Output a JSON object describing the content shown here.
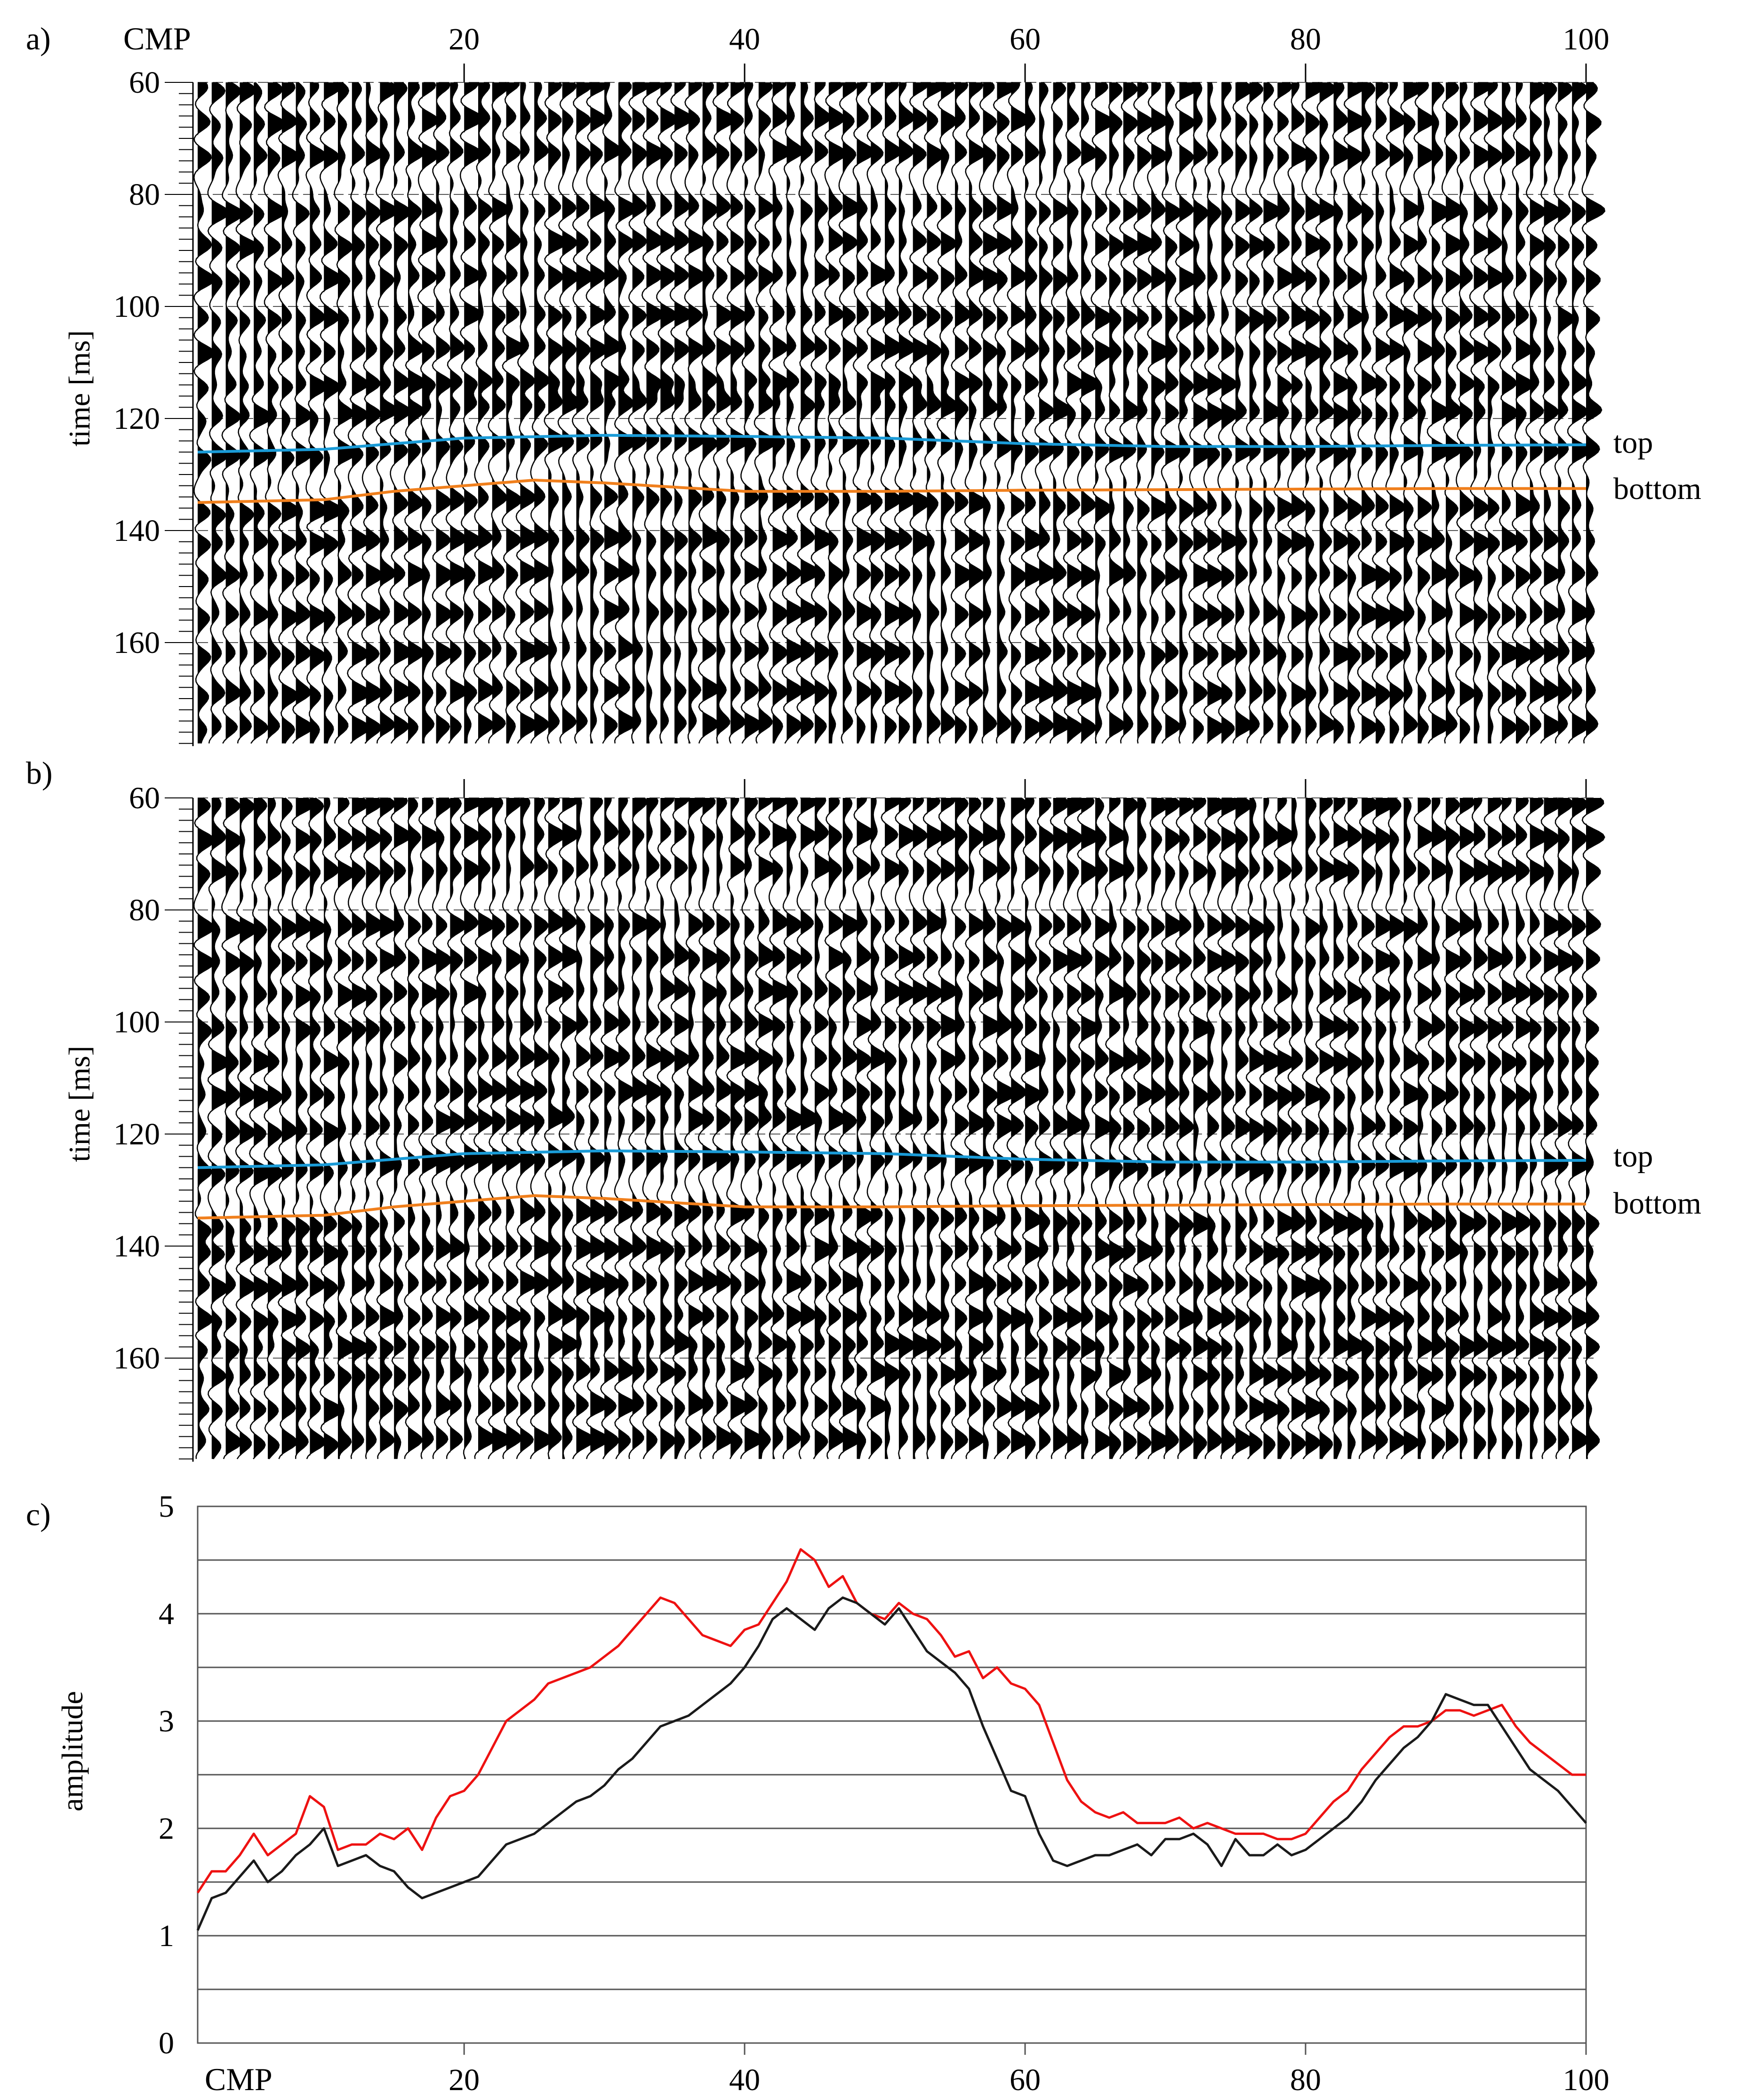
{
  "colors": {
    "top_horizon": "#1a9bd7",
    "bottom_horizon": "#f07f1c",
    "curve_red": "#ee1111",
    "curve_black": "#1a1a1a",
    "wiggle": "#000000",
    "grid": "#555555"
  },
  "chart_data": [
    {
      "id": "a",
      "panel_label": "a)",
      "type": "seismic-wiggle",
      "x_axis_label": "CMP",
      "x_ticks": [
        20,
        40,
        60,
        80,
        100
      ],
      "x_tick_labels": [
        "20",
        "40",
        "60",
        "80",
        "100"
      ],
      "xlim": [
        1,
        100
      ],
      "ylabel": "time [ms]",
      "y_ticks": [
        60,
        80,
        100,
        120,
        140,
        160
      ],
      "y_tick_labels": [
        "60",
        "80",
        "100",
        "120",
        "140",
        "160"
      ],
      "ylim": [
        60,
        178
      ],
      "trace_count": 100,
      "events_ms": [
        61,
        67,
        73,
        83,
        89,
        95,
        102,
        108,
        114,
        119,
        126,
        136,
        142,
        148,
        155,
        162,
        169,
        175
      ],
      "horizons": [
        {
          "name": "top",
          "label": "top",
          "cmp": [
            1,
            10,
            20,
            30,
            40,
            50,
            60,
            70,
            80,
            90,
            100
          ],
          "time_ms": [
            126,
            125.5,
            123.5,
            123,
            123.2,
            123.5,
            124.5,
            125,
            125,
            124.8,
            124.7
          ]
        },
        {
          "name": "bottom",
          "label": "bottom",
          "cmp": [
            1,
            10,
            15,
            20,
            25,
            30,
            40,
            50,
            60,
            70,
            80,
            90,
            100
          ],
          "time_ms": [
            135,
            134.5,
            133,
            132,
            131,
            131.5,
            133,
            133,
            132.8,
            132.7,
            132.6,
            132.5,
            132.5
          ]
        }
      ]
    },
    {
      "id": "b",
      "panel_label": "b)",
      "type": "seismic-wiggle",
      "x_ticks": [
        20,
        40,
        60,
        80,
        100
      ],
      "xlim": [
        1,
        100
      ],
      "ylabel": "time  [ms]",
      "y_ticks": [
        60,
        80,
        100,
        120,
        140,
        160
      ],
      "y_tick_labels": [
        "60",
        "80",
        "100",
        "120",
        "140",
        "160"
      ],
      "ylim": [
        60,
        178
      ],
      "trace_count": 100,
      "events_ms": [
        61,
        67,
        73,
        83,
        89,
        95,
        101,
        107,
        113,
        119,
        126,
        136,
        141,
        147,
        153,
        158,
        163,
        169,
        175
      ],
      "horizons": [
        {
          "name": "top",
          "label": "top",
          "cmp": [
            1,
            10,
            20,
            30,
            40,
            50,
            60,
            70,
            80,
            90,
            100
          ],
          "time_ms": [
            126,
            125.5,
            123.5,
            123,
            123.2,
            123.5,
            124.5,
            125,
            125,
            124.8,
            124.7
          ]
        },
        {
          "name": "bottom",
          "label": "bottom",
          "cmp": [
            1,
            10,
            15,
            20,
            25,
            30,
            40,
            50,
            60,
            70,
            80,
            90,
            100
          ],
          "time_ms": [
            135,
            134.5,
            133,
            132,
            131,
            131.5,
            133,
            133,
            132.8,
            132.7,
            132.6,
            132.5,
            132.5
          ]
        }
      ]
    },
    {
      "id": "c",
      "panel_label": "c)",
      "type": "line",
      "xlabel": "CMP",
      "x_ticks": [
        20,
        40,
        60,
        80,
        100
      ],
      "x_tick_labels": [
        "20",
        "40",
        "60",
        "80",
        "100"
      ],
      "xlim": [
        1,
        100
      ],
      "ylabel": "amplitude",
      "y_ticks": [
        0,
        1,
        2,
        3,
        4,
        5
      ],
      "y_tick_labels": [
        "0",
        "1",
        "2",
        "3",
        "4",
        "5"
      ],
      "ylim": [
        0,
        5
      ],
      "grid": "horizontal every 0.5",
      "series": [
        {
          "name": "red",
          "x": [
            1,
            2,
            3,
            4,
            5,
            6,
            7,
            8,
            9,
            10,
            11,
            12,
            13,
            14,
            15,
            16,
            17,
            18,
            19,
            20,
            21,
            22,
            23,
            24,
            25,
            26,
            27,
            28,
            29,
            30,
            31,
            32,
            33,
            34,
            35,
            36,
            37,
            38,
            39,
            40,
            41,
            42,
            43,
            44,
            45,
            46,
            47,
            48,
            49,
            50,
            51,
            52,
            53,
            54,
            55,
            56,
            57,
            58,
            59,
            60,
            61,
            62,
            63,
            64,
            65,
            66,
            67,
            68,
            69,
            70,
            71,
            72,
            73,
            74,
            75,
            76,
            77,
            78,
            79,
            80,
            81,
            82,
            83,
            84,
            85,
            86,
            87,
            88,
            89,
            90,
            91,
            92,
            93,
            94,
            95,
            96,
            97,
            98,
            99,
            100
          ],
          "y": [
            1.4,
            1.6,
            1.6,
            1.75,
            1.95,
            1.75,
            1.85,
            1.95,
            2.3,
            2.2,
            1.8,
            1.85,
            1.85,
            1.95,
            1.9,
            2.0,
            1.8,
            2.1,
            2.3,
            2.35,
            2.5,
            2.75,
            3.0,
            3.1,
            3.2,
            3.35,
            3.4,
            3.45,
            3.5,
            3.6,
            3.7,
            3.85,
            4.0,
            4.15,
            4.1,
            3.95,
            3.8,
            3.75,
            3.7,
            3.85,
            3.9,
            4.1,
            4.3,
            4.6,
            4.5,
            4.25,
            4.35,
            4.1,
            4.0,
            3.95,
            4.1,
            4.0,
            3.95,
            3.8,
            3.6,
            3.65,
            3.4,
            3.5,
            3.35,
            3.3,
            3.15,
            2.8,
            2.45,
            2.25,
            2.15,
            2.1,
            2.15,
            2.05,
            2.05,
            2.05,
            2.1,
            2.0,
            2.05,
            2.0,
            1.95,
            1.95,
            1.95,
            1.9,
            1.9,
            1.95,
            2.1,
            2.25,
            2.35,
            2.55,
            2.7,
            2.85,
            2.95,
            2.95,
            3.0,
            3.1,
            3.1,
            3.05,
            3.1,
            3.15,
            2.95,
            2.8,
            2.7,
            2.6,
            2.5,
            2.5
          ]
        },
        {
          "name": "black",
          "x": [
            1,
            2,
            3,
            4,
            5,
            6,
            7,
            8,
            9,
            10,
            11,
            12,
            13,
            14,
            15,
            16,
            17,
            18,
            19,
            20,
            21,
            22,
            23,
            24,
            25,
            26,
            27,
            28,
            29,
            30,
            31,
            32,
            33,
            34,
            35,
            36,
            37,
            38,
            39,
            40,
            41,
            42,
            43,
            44,
            45,
            46,
            47,
            48,
            49,
            50,
            51,
            52,
            53,
            54,
            55,
            56,
            57,
            58,
            59,
            60,
            61,
            62,
            63,
            64,
            65,
            66,
            67,
            68,
            69,
            70,
            71,
            72,
            73,
            74,
            75,
            76,
            77,
            78,
            79,
            80,
            81,
            82,
            83,
            84,
            85,
            86,
            87,
            88,
            89,
            90,
            91,
            92,
            93,
            94,
            95,
            96,
            97,
            98,
            99,
            100
          ],
          "y": [
            1.05,
            1.35,
            1.4,
            1.55,
            1.7,
            1.5,
            1.6,
            1.75,
            1.85,
            2.0,
            1.65,
            1.7,
            1.75,
            1.65,
            1.6,
            1.45,
            1.35,
            1.4,
            1.45,
            1.5,
            1.55,
            1.7,
            1.85,
            1.9,
            1.95,
            2.05,
            2.15,
            2.25,
            2.3,
            2.4,
            2.55,
            2.65,
            2.8,
            2.95,
            3.0,
            3.05,
            3.15,
            3.25,
            3.35,
            3.5,
            3.7,
            3.95,
            4.05,
            3.95,
            3.85,
            4.05,
            4.15,
            4.1,
            4.0,
            3.9,
            4.05,
            3.85,
            3.65,
            3.55,
            3.45,
            3.3,
            2.95,
            2.65,
            2.35,
            2.3,
            1.95,
            1.7,
            1.65,
            1.7,
            1.75,
            1.75,
            1.8,
            1.85,
            1.75,
            1.9,
            1.9,
            1.95,
            1.85,
            1.65,
            1.9,
            1.75,
            1.75,
            1.85,
            1.75,
            1.8,
            1.9,
            2.0,
            2.1,
            2.25,
            2.45,
            2.6,
            2.75,
            2.85,
            3.0,
            3.25,
            3.2,
            3.15,
            3.15,
            2.95,
            2.75,
            2.55,
            2.45,
            2.35,
            2.2,
            2.05
          ]
        }
      ]
    }
  ]
}
